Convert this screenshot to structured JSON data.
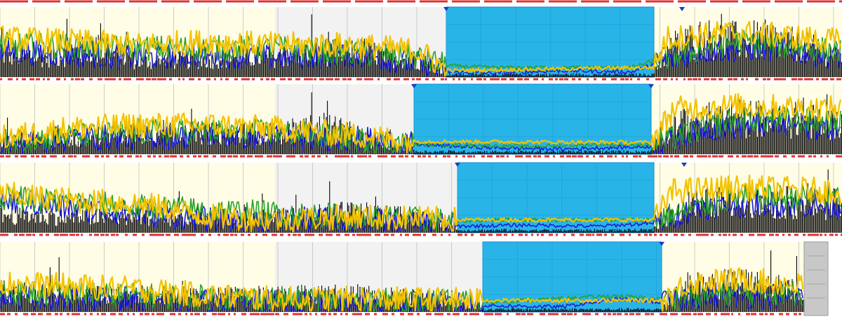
{
  "colors": {
    "day_band": "#fffde6",
    "night_band": "#f2f2f2",
    "selection": "#29b4e8",
    "selection_edge": "#1f86c9",
    "grid": "#b9b9b9",
    "baseline": "#e23030",
    "series_black": "#000000",
    "series_blue": "#1c1cd8",
    "series_green": "#2aa02a",
    "series_red": "#e02020",
    "series_yellow": "#f2c200",
    "scrollbar": "#c8c8c8"
  },
  "icons": [
    "marker-triangle-icon",
    "scroll-thumb"
  ],
  "chart_data": [
    {
      "type": "line",
      "row": 1,
      "x_range": [
        0,
        1200
      ],
      "y_range": [
        0,
        100
      ],
      "grid": true,
      "shaded_day": [
        0,
        392
      ],
      "shaded_night": [
        392,
        636
      ],
      "selection": [
        636,
        932
      ],
      "markers": [
        636,
        972
      ],
      "series": [
        {
          "color_key": "series_black",
          "kind": "bars",
          "profile": [
            [
              0,
              45
            ],
            [
              80,
              40
            ],
            [
              130,
              55
            ],
            [
              200,
              30
            ],
            [
              300,
              35
            ],
            [
              392,
              40
            ],
            [
              450,
              45
            ],
            [
              520,
              50
            ],
            [
              600,
              30
            ],
            [
              636,
              10
            ],
            [
              932,
              10
            ],
            [
              960,
              60
            ],
            [
              1000,
              75
            ],
            [
              1050,
              70
            ],
            [
              1100,
              72
            ],
            [
              1200,
              40
            ]
          ]
        },
        {
          "color_key": "series_blue",
          "kind": "line",
          "profile": [
            [
              0,
              40
            ],
            [
              100,
              35
            ],
            [
              200,
              30
            ],
            [
              300,
              35
            ],
            [
              392,
              30
            ],
            [
              500,
              35
            ],
            [
              600,
              20
            ],
            [
              636,
              8
            ],
            [
              700,
              6
            ],
            [
              800,
              10
            ],
            [
              900,
              8
            ],
            [
              932,
              20
            ],
            [
              1000,
              40
            ],
            [
              1100,
              45
            ],
            [
              1200,
              30
            ]
          ]
        },
        {
          "color_key": "series_green",
          "kind": "line",
          "profile": [
            [
              0,
              50
            ],
            [
              200,
              45
            ],
            [
              392,
              45
            ],
            [
              600,
              30
            ],
            [
              636,
              18
            ],
            [
              700,
              15
            ],
            [
              800,
              15
            ],
            [
              900,
              15
            ],
            [
              932,
              25
            ],
            [
              1050,
              55
            ],
            [
              1200,
              40
            ]
          ]
        },
        {
          "color_key": "series_yellow",
          "kind": "line",
          "profile": [
            [
              0,
              60
            ],
            [
              100,
              55
            ],
            [
              200,
              50
            ],
            [
              300,
              55
            ],
            [
              392,
              50
            ],
            [
              500,
              50
            ],
            [
              600,
              40
            ],
            [
              636,
              10
            ],
            [
              932,
              15
            ],
            [
              950,
              60
            ],
            [
              1050,
              70
            ],
            [
              1200,
              55
            ]
          ]
        }
      ]
    },
    {
      "type": "line",
      "row": 2,
      "x_range": [
        0,
        1200
      ],
      "y_range": [
        0,
        100
      ],
      "grid": true,
      "shaded_day": [
        0,
        392
      ],
      "shaded_night": [
        392,
        590
      ],
      "selection": [
        590,
        928
      ],
      "markers": [
        590,
        928
      ],
      "series": [
        {
          "color_key": "series_black",
          "kind": "bars",
          "profile": [
            [
              0,
              25
            ],
            [
              100,
              30
            ],
            [
              200,
              45
            ],
            [
              300,
              40
            ],
            [
              392,
              40
            ],
            [
              470,
              55
            ],
            [
              540,
              20
            ],
            [
              590,
              10
            ],
            [
              928,
              10
            ],
            [
              960,
              60
            ],
            [
              1050,
              70
            ],
            [
              1150,
              65
            ],
            [
              1200,
              55
            ]
          ]
        },
        {
          "color_key": "series_blue",
          "kind": "line",
          "profile": [
            [
              0,
              15
            ],
            [
              100,
              25
            ],
            [
              200,
              25
            ],
            [
              300,
              30
            ],
            [
              392,
              25
            ],
            [
              500,
              25
            ],
            [
              590,
              15
            ],
            [
              700,
              10
            ],
            [
              800,
              8
            ],
            [
              928,
              12
            ],
            [
              1000,
              40
            ],
            [
              1100,
              45
            ],
            [
              1200,
              40
            ]
          ]
        },
        {
          "color_key": "series_green",
          "kind": "line",
          "profile": [
            [
              0,
              20
            ],
            [
              200,
              35
            ],
            [
              392,
              35
            ],
            [
              590,
              15
            ],
            [
              650,
              15
            ],
            [
              750,
              12
            ],
            [
              850,
              15
            ],
            [
              928,
              15
            ],
            [
              1050,
              55
            ],
            [
              1200,
              50
            ]
          ]
        },
        {
          "color_key": "series_yellow",
          "kind": "line",
          "profile": [
            [
              0,
              25
            ],
            [
              100,
              40
            ],
            [
              200,
              45
            ],
            [
              300,
              45
            ],
            [
              392,
              40
            ],
            [
              500,
              30
            ],
            [
              590,
              20
            ],
            [
              928,
              18
            ],
            [
              960,
              70
            ],
            [
              1050,
              75
            ],
            [
              1200,
              70
            ]
          ]
        }
      ]
    },
    {
      "type": "line",
      "row": 3,
      "x_range": [
        0,
        1200
      ],
      "y_range": [
        0,
        100
      ],
      "grid": true,
      "shaded_day": [
        0,
        392
      ],
      "shaded_night": [
        392,
        652
      ],
      "selection": [
        652,
        932
      ],
      "markers": [
        652,
        975
      ],
      "series": [
        {
          "color_key": "series_black",
          "kind": "bars",
          "profile": [
            [
              0,
              35
            ],
            [
              100,
              30
            ],
            [
              200,
              30
            ],
            [
              300,
              25
            ],
            [
              392,
              30
            ],
            [
              500,
              40
            ],
            [
              600,
              30
            ],
            [
              652,
              10
            ],
            [
              932,
              10
            ],
            [
              980,
              55
            ],
            [
              1080,
              60
            ],
            [
              1200,
              55
            ]
          ]
        },
        {
          "color_key": "series_blue",
          "kind": "line",
          "profile": [
            [
              0,
              50
            ],
            [
              80,
              40
            ],
            [
              200,
              30
            ],
            [
              300,
              20
            ],
            [
              392,
              20
            ],
            [
              500,
              20
            ],
            [
              600,
              15
            ],
            [
              652,
              10
            ],
            [
              750,
              12
            ],
            [
              850,
              10
            ],
            [
              932,
              15
            ],
            [
              1000,
              40
            ],
            [
              1100,
              45
            ],
            [
              1200,
              40
            ]
          ]
        },
        {
          "color_key": "series_green",
          "kind": "line",
          "profile": [
            [
              0,
              55
            ],
            [
              200,
              40
            ],
            [
              392,
              30
            ],
            [
              652,
              18
            ],
            [
              700,
              20
            ],
            [
              800,
              20
            ],
            [
              932,
              20
            ],
            [
              1050,
              55
            ],
            [
              1200,
              55
            ]
          ]
        },
        {
          "color_key": "series_yellow",
          "kind": "line",
          "profile": [
            [
              0,
              60
            ],
            [
              100,
              50
            ],
            [
              200,
              45
            ],
            [
              300,
              25
            ],
            [
              392,
              20
            ],
            [
              500,
              25
            ],
            [
              652,
              20
            ],
            [
              932,
              20
            ],
            [
              960,
              65
            ],
            [
              1050,
              70
            ],
            [
              1200,
              65
            ]
          ]
        }
      ]
    },
    {
      "type": "line",
      "row": 4,
      "x_range": [
        0,
        1200
      ],
      "y_range": [
        0,
        100
      ],
      "grid": true,
      "shaded_day": [
        0,
        392
      ],
      "shaded_night": [
        392,
        688
      ],
      "selection": [
        688,
        943
      ],
      "markers": [
        943
      ],
      "series": [
        {
          "color_key": "series_black",
          "kind": "bars",
          "profile": [
            [
              0,
              40
            ],
            [
              100,
              35
            ],
            [
              200,
              30
            ],
            [
              300,
              30
            ],
            [
              392,
              35
            ],
            [
              500,
              35
            ],
            [
              600,
              30
            ],
            [
              688,
              10
            ],
            [
              943,
              10
            ],
            [
              980,
              50
            ],
            [
              1060,
              55
            ],
            [
              1145,
              40
            ]
          ]
        },
        {
          "color_key": "series_blue",
          "kind": "line",
          "profile": [
            [
              0,
              25
            ],
            [
              100,
              20
            ],
            [
              200,
              20
            ],
            [
              300,
              15
            ],
            [
              392,
              15
            ],
            [
              500,
              12
            ],
            [
              600,
              12
            ],
            [
              688,
              10
            ],
            [
              800,
              8
            ],
            [
              880,
              20
            ],
            [
              943,
              15
            ],
            [
              1000,
              25
            ],
            [
              1145,
              25
            ]
          ]
        },
        {
          "color_key": "series_green",
          "kind": "line",
          "profile": [
            [
              0,
              30
            ],
            [
              200,
              25
            ],
            [
              392,
              20
            ],
            [
              688,
              15
            ],
            [
              780,
              20
            ],
            [
              880,
              25
            ],
            [
              943,
              20
            ],
            [
              1050,
              30
            ],
            [
              1145,
              30
            ]
          ]
        },
        {
          "color_key": "series_yellow",
          "kind": "line",
          "profile": [
            [
              0,
              45
            ],
            [
              100,
              40
            ],
            [
              200,
              35
            ],
            [
              300,
              25
            ],
            [
              392,
              20
            ],
            [
              500,
              20
            ],
            [
              688,
              18
            ],
            [
              943,
              18
            ],
            [
              980,
              45
            ],
            [
              1060,
              50
            ],
            [
              1145,
              40
            ]
          ]
        }
      ]
    }
  ]
}
